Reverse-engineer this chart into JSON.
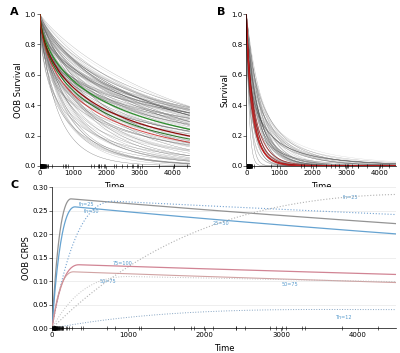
{
  "panel_A": {
    "label": "A",
    "ylabel": "OOB Survival",
    "xlabel": "Time",
    "n_gray_curves": 120,
    "ylim": [
      0.0,
      1.0
    ],
    "xlim": [
      0,
      4500
    ],
    "yticks": [
      0.0,
      0.2,
      0.4,
      0.6,
      0.8,
      1.0
    ],
    "xticks": [
      0,
      1000,
      2000,
      3000,
      4000
    ],
    "seed": 42
  },
  "panel_B": {
    "label": "B",
    "ylabel": "Survival",
    "xlabel": "Time",
    "n_gray_curves": 60,
    "ylim": [
      0.0,
      1.0
    ],
    "xlim": [
      0,
      4500
    ],
    "yticks": [
      0.0,
      0.2,
      0.4,
      0.6,
      0.8,
      1.0
    ],
    "xticks": [
      0,
      1000,
      2000,
      3000,
      4000
    ],
    "seed": 7
  },
  "panel_C": {
    "label": "C",
    "ylabel": "OOB CRPS",
    "xlabel": "Time",
    "ylim": [
      0.0,
      0.3
    ],
    "xlim": [
      0,
      4500
    ],
    "yticks": [
      0.0,
      0.05,
      0.1,
      0.15,
      0.2,
      0.25,
      0.3
    ],
    "xticks": [
      0,
      1000,
      2000,
      3000,
      4000
    ]
  },
  "background_color": "#ffffff",
  "grid_color": "#e8e8e8",
  "tick_label_fontsize": 5,
  "axis_label_fontsize": 6,
  "panel_label_fontsize": 8
}
